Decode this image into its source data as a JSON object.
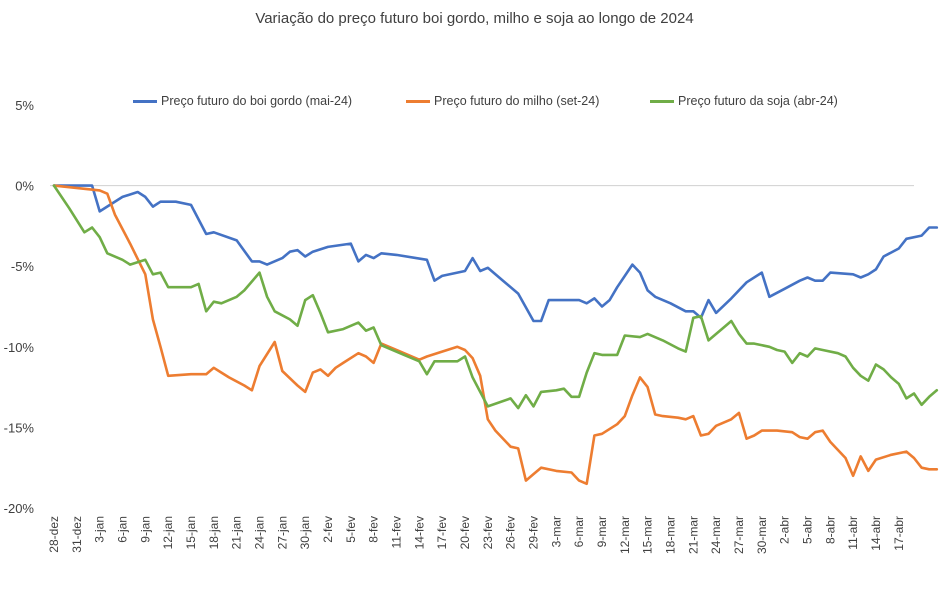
{
  "chart_data": {
    "type": "line",
    "title": "Variação do preço futuro boi gordo, milho e soja ao longo de 2024",
    "xlabel": "",
    "ylabel": "",
    "ylim": [
      -20,
      5
    ],
    "y_ticks": [
      5,
      0,
      -5,
      -10,
      -15,
      -20
    ],
    "y_tick_labels": [
      "5%",
      "0%",
      "-5%",
      "-10%",
      "-15%",
      "-20%"
    ],
    "x_tick_labels": [
      "28-dez",
      "31-dez",
      "3-jan",
      "6-jan",
      "9-jan",
      "12-jan",
      "15-jan",
      "18-jan",
      "21-jan",
      "24-jan",
      "27-jan",
      "30-jan",
      "2-fev",
      "5-fev",
      "8-fev",
      "11-fev",
      "14-fev",
      "17-fev",
      "20-fev",
      "23-fev",
      "26-fev",
      "29-fev",
      "3-mar",
      "6-mar",
      "9-mar",
      "12-mar",
      "15-mar",
      "18-mar",
      "21-mar",
      "24-mar",
      "27-mar",
      "30-mar",
      "2-abr",
      "5-abr",
      "8-abr",
      "11-abr",
      "14-abr",
      "17-abr"
    ],
    "x_tick_positions": [
      0,
      3,
      6,
      9,
      12,
      15,
      18,
      21,
      24,
      27,
      30,
      33,
      36,
      39,
      42,
      45,
      48,
      51,
      54,
      57,
      60,
      63,
      66,
      69,
      72,
      75,
      78,
      81,
      84,
      87,
      90,
      93,
      96,
      99,
      102,
      105,
      108,
      111
    ],
    "x_range": [
      0,
      113
    ],
    "grid": "zero-line",
    "legend_position": "top",
    "series": [
      {
        "name": "Preço futuro do boi gordo (mai-24)",
        "color": "#4472C4",
        "points": [
          [
            0,
            0
          ],
          [
            2.5,
            0
          ],
          [
            5,
            0
          ],
          [
            6,
            -1.6
          ],
          [
            9,
            -0.7
          ],
          [
            11,
            -0.4
          ],
          [
            12,
            -0.7
          ],
          [
            13,
            -1.3
          ],
          [
            14,
            -1.0
          ],
          [
            16,
            -1.0
          ],
          [
            18,
            -1.2
          ],
          [
            20,
            -3.0
          ],
          [
            21,
            -2.9
          ],
          [
            24,
            -3.4
          ],
          [
            26,
            -4.7
          ],
          [
            27,
            -4.7
          ],
          [
            28,
            -4.9
          ],
          [
            30,
            -4.5
          ],
          [
            31,
            -4.1
          ],
          [
            32,
            -4.0
          ],
          [
            33,
            -4.4
          ],
          [
            34,
            -4.1
          ],
          [
            36,
            -3.8
          ],
          [
            39,
            -3.6
          ],
          [
            40,
            -4.7
          ],
          [
            41,
            -4.3
          ],
          [
            42,
            -4.5
          ],
          [
            43,
            -4.2
          ],
          [
            45,
            -4.3
          ],
          [
            49,
            -4.6
          ],
          [
            50,
            -5.9
          ],
          [
            51,
            -5.6
          ],
          [
            54,
            -5.3
          ],
          [
            55,
            -4.5
          ],
          [
            56,
            -5.3
          ],
          [
            57,
            -5.1
          ],
          [
            59,
            -5.9
          ],
          [
            61,
            -6.7
          ],
          [
            63,
            -8.4
          ],
          [
            64,
            -8.4
          ],
          [
            65,
            -7.1
          ],
          [
            69,
            -7.1
          ],
          [
            70,
            -7.3
          ],
          [
            71,
            -7.0
          ],
          [
            72,
            -7.5
          ],
          [
            73,
            -7.1
          ],
          [
            74,
            -6.3
          ],
          [
            76,
            -4.9
          ],
          [
            77,
            -5.4
          ],
          [
            78,
            -6.5
          ],
          [
            79,
            -6.9
          ],
          [
            81,
            -7.3
          ],
          [
            83,
            -7.8
          ],
          [
            84,
            -7.8
          ],
          [
            85,
            -8.2
          ],
          [
            86,
            -7.1
          ],
          [
            87,
            -7.9
          ],
          [
            89,
            -7.0
          ],
          [
            91,
            -6.0
          ],
          [
            93,
            -5.4
          ],
          [
            94,
            -6.9
          ],
          [
            96,
            -6.4
          ],
          [
            98,
            -5.9
          ],
          [
            99,
            -5.7
          ],
          [
            100,
            -5.9
          ],
          [
            101,
            -5.9
          ],
          [
            102,
            -5.4
          ],
          [
            105,
            -5.5
          ],
          [
            106,
            -5.7
          ],
          [
            107,
            -5.5
          ],
          [
            108,
            -5.2
          ],
          [
            109,
            -4.4
          ],
          [
            111,
            -3.9
          ],
          [
            112,
            -3.3
          ],
          [
            114,
            -3.1
          ],
          [
            115,
            -2.6
          ],
          [
            116,
            -2.6
          ]
        ]
      },
      {
        "name": "Preço futuro do milho (set-24)",
        "color": "#ED7D31",
        "points": [
          [
            0,
            0
          ],
          [
            6,
            -0.3
          ],
          [
            7,
            -0.5
          ],
          [
            8,
            -1.8
          ],
          [
            10,
            -3.6
          ],
          [
            12,
            -5.5
          ],
          [
            13,
            -8.3
          ],
          [
            14,
            -10.0
          ],
          [
            15,
            -11.8
          ],
          [
            18,
            -11.7
          ],
          [
            20,
            -11.7
          ],
          [
            21,
            -11.3
          ],
          [
            22,
            -11.6
          ],
          [
            23,
            -11.9
          ],
          [
            25,
            -12.4
          ],
          [
            26,
            -12.7
          ],
          [
            27,
            -11.2
          ],
          [
            29,
            -9.7
          ],
          [
            30,
            -11.5
          ],
          [
            32,
            -12.4
          ],
          [
            33,
            -12.8
          ],
          [
            34,
            -11.6
          ],
          [
            35,
            -11.4
          ],
          [
            36,
            -11.8
          ],
          [
            37,
            -11.3
          ],
          [
            38,
            -11.0
          ],
          [
            40,
            -10.4
          ],
          [
            41,
            -10.6
          ],
          [
            42,
            -11.0
          ],
          [
            43,
            -9.8
          ],
          [
            45,
            -10.2
          ],
          [
            48,
            -10.8
          ],
          [
            49,
            -10.6
          ],
          [
            51,
            -10.3
          ],
          [
            53,
            -10.0
          ],
          [
            54,
            -10.2
          ],
          [
            55,
            -10.7
          ],
          [
            56,
            -11.8
          ],
          [
            57,
            -14.5
          ],
          [
            58,
            -15.2
          ],
          [
            60,
            -16.2
          ],
          [
            61,
            -16.3
          ],
          [
            62,
            -18.3
          ],
          [
            63,
            -17.9
          ],
          [
            64,
            -17.5
          ],
          [
            66,
            -17.7
          ],
          [
            68,
            -17.8
          ],
          [
            69,
            -18.3
          ],
          [
            70,
            -18.5
          ],
          [
            71,
            -15.5
          ],
          [
            72,
            -15.4
          ],
          [
            74,
            -14.8
          ],
          [
            75,
            -14.3
          ],
          [
            76,
            -13.0
          ],
          [
            77,
            -11.9
          ],
          [
            78,
            -12.5
          ],
          [
            79,
            -14.2
          ],
          [
            80,
            -14.3
          ],
          [
            82,
            -14.4
          ],
          [
            83,
            -14.5
          ],
          [
            84,
            -14.3
          ],
          [
            85,
            -15.5
          ],
          [
            86,
            -15.4
          ],
          [
            87,
            -14.9
          ],
          [
            89,
            -14.5
          ],
          [
            90,
            -14.1
          ],
          [
            91,
            -15.7
          ],
          [
            92,
            -15.5
          ],
          [
            93,
            -15.2
          ],
          [
            95,
            -15.2
          ],
          [
            97,
            -15.3
          ],
          [
            98,
            -15.6
          ],
          [
            99,
            -15.7
          ],
          [
            100,
            -15.3
          ],
          [
            101,
            -15.2
          ],
          [
            102,
            -15.9
          ],
          [
            104,
            -16.9
          ],
          [
            105,
            -18.0
          ],
          [
            106,
            -16.8
          ],
          [
            107,
            -17.7
          ],
          [
            108,
            -17.0
          ],
          [
            110,
            -16.7
          ],
          [
            112,
            -16.5
          ],
          [
            113,
            -16.9
          ],
          [
            114,
            -17.5
          ],
          [
            115,
            -17.6
          ],
          [
            116,
            -17.6
          ]
        ]
      },
      {
        "name": "Preço futuro da soja (abr-24)",
        "color": "#70AD47",
        "points": [
          [
            0,
            0
          ],
          [
            2,
            -1.4
          ],
          [
            4,
            -2.9
          ],
          [
            5,
            -2.6
          ],
          [
            6,
            -3.2
          ],
          [
            7,
            -4.2
          ],
          [
            9,
            -4.6
          ],
          [
            10,
            -4.9
          ],
          [
            12,
            -4.6
          ],
          [
            13,
            -5.5
          ],
          [
            14,
            -5.4
          ],
          [
            15,
            -6.3
          ],
          [
            18,
            -6.3
          ],
          [
            19,
            -6.1
          ],
          [
            20,
            -7.8
          ],
          [
            21,
            -7.2
          ],
          [
            22,
            -7.3
          ],
          [
            24,
            -6.9
          ],
          [
            25,
            -6.5
          ],
          [
            27,
            -5.4
          ],
          [
            28,
            -6.9
          ],
          [
            29,
            -7.8
          ],
          [
            31,
            -8.3
          ],
          [
            32,
            -8.7
          ],
          [
            33,
            -7.1
          ],
          [
            34,
            -6.8
          ],
          [
            35,
            -7.9
          ],
          [
            36,
            -9.1
          ],
          [
            38,
            -8.9
          ],
          [
            40,
            -8.5
          ],
          [
            41,
            -9.0
          ],
          [
            42,
            -8.8
          ],
          [
            43,
            -9.9
          ],
          [
            46,
            -10.5
          ],
          [
            48,
            -10.9
          ],
          [
            49,
            -11.7
          ],
          [
            50,
            -10.9
          ],
          [
            53,
            -10.9
          ],
          [
            54,
            -10.6
          ],
          [
            55,
            -11.9
          ],
          [
            56,
            -12.8
          ],
          [
            57,
            -13.7
          ],
          [
            60,
            -13.2
          ],
          [
            61,
            -13.8
          ],
          [
            62,
            -13.0
          ],
          [
            63,
            -13.7
          ],
          [
            64,
            -12.8
          ],
          [
            66,
            -12.7
          ],
          [
            67,
            -12.6
          ],
          [
            68,
            -13.1
          ],
          [
            69,
            -13.1
          ],
          [
            70,
            -11.6
          ],
          [
            71,
            -10.4
          ],
          [
            72,
            -10.5
          ],
          [
            74,
            -10.5
          ],
          [
            75,
            -9.3
          ],
          [
            77,
            -9.4
          ],
          [
            78,
            -9.2
          ],
          [
            80,
            -9.6
          ],
          [
            82,
            -10.1
          ],
          [
            83,
            -10.3
          ],
          [
            84,
            -8.2
          ],
          [
            85,
            -8.1
          ],
          [
            86,
            -9.6
          ],
          [
            88,
            -8.8
          ],
          [
            89,
            -8.4
          ],
          [
            90,
            -9.2
          ],
          [
            91,
            -9.8
          ],
          [
            92,
            -9.8
          ],
          [
            94,
            -10.0
          ],
          [
            95,
            -10.2
          ],
          [
            96,
            -10.3
          ],
          [
            97,
            -11.0
          ],
          [
            98,
            -10.4
          ],
          [
            99,
            -10.6
          ],
          [
            100,
            -10.1
          ],
          [
            101,
            -10.2
          ],
          [
            103,
            -10.4
          ],
          [
            104,
            -10.6
          ],
          [
            105,
            -11.3
          ],
          [
            106,
            -11.8
          ],
          [
            107,
            -12.1
          ],
          [
            108,
            -11.1
          ],
          [
            109,
            -11.4
          ],
          [
            110,
            -11.9
          ],
          [
            111,
            -12.3
          ],
          [
            112,
            -13.2
          ],
          [
            113,
            -12.9
          ],
          [
            114,
            -13.6
          ],
          [
            115,
            -13.1
          ],
          [
            116,
            -12.7
          ]
        ]
      }
    ]
  }
}
